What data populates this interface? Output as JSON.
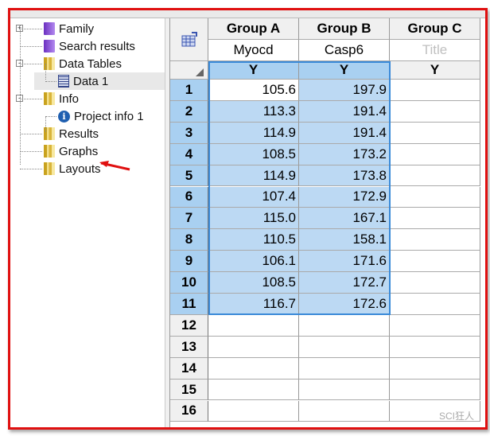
{
  "tree": {
    "items": [
      {
        "label": "Family",
        "icon": "book-icon",
        "expander": "+"
      },
      {
        "label": "Search results",
        "icon": "book-icon"
      },
      {
        "label": "Data Tables",
        "icon": "folder-icon",
        "expander": "-"
      },
      {
        "label": "Data 1",
        "icon": "data-sheet-icon",
        "selected": true
      },
      {
        "label": "Info",
        "icon": "folder-icon",
        "expander": "-"
      },
      {
        "label": "Project info 1",
        "icon": "info-icon"
      },
      {
        "label": "Results",
        "icon": "folder-icon"
      },
      {
        "label": "Graphs",
        "icon": "folder-icon"
      },
      {
        "label": "Layouts",
        "icon": "folder-icon"
      }
    ]
  },
  "table": {
    "columns": [
      {
        "group": "Group A",
        "title": "Myocd",
        "y": "Y"
      },
      {
        "group": "Group B",
        "title": "Casp6",
        "y": "Y"
      },
      {
        "group": "Group C",
        "title": "Title",
        "y": "Y",
        "placeholder": true
      }
    ],
    "row_numbers": [
      "1",
      "2",
      "3",
      "4",
      "5",
      "6",
      "7",
      "8",
      "9",
      "10",
      "11",
      "12",
      "13",
      "14",
      "15",
      "16"
    ],
    "values_a": [
      "105.6",
      "113.3",
      "114.9",
      "108.5",
      "114.9",
      "107.4",
      "115.0",
      "110.5",
      "106.1",
      "108.5",
      "116.7"
    ],
    "values_b": [
      "197.9",
      "191.4",
      "191.4",
      "173.2",
      "173.8",
      "172.9",
      "167.1",
      "158.1",
      "171.6",
      "172.7",
      "172.6"
    ]
  },
  "colors": {
    "selection": "#bcd9f3",
    "row_header_selected": "#a9d0f1",
    "annotation": "#e01010"
  },
  "watermark": "SCI狂人"
}
